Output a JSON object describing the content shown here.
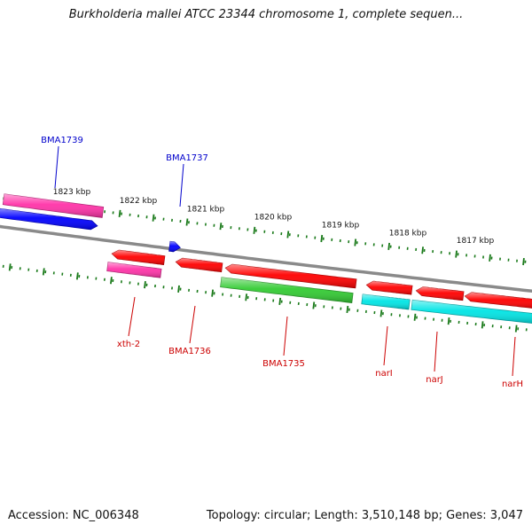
{
  "map": {
    "title": "Burkholderia mallei ATCC 23344 chromosome 1, complete sequen...",
    "accession_label": "Accession: NC_006348",
    "summary_label": "Topology: circular; Length: 3,510,148 bp; Genes: 3,047"
  },
  "ruler": {
    "unit": "kbp",
    "ticks": [
      "1823 kbp",
      "1822 kbp",
      "1821 kbp",
      "1820 kbp",
      "1819 kbp",
      "1818 kbp",
      "1817 kbp"
    ]
  },
  "genes": [
    {
      "label": "BMA1739",
      "strand": "+",
      "color": "#ff33a8",
      "labeled": true,
      "label_color": "#0000cc"
    },
    {
      "label": "",
      "strand": "+",
      "color": "#0000ff",
      "labeled": false
    },
    {
      "label": "BMA1737",
      "strand": "+",
      "color": "#0000ff",
      "labeled": true,
      "label_color": "#0000cc"
    },
    {
      "label": "xth-2",
      "strand": "-",
      "color": "#ff0000",
      "labeled": true,
      "label_color": "#cc0000"
    },
    {
      "label": "",
      "strand": "-",
      "color": "#ff33a8",
      "labeled": false
    },
    {
      "label": "BMA1736",
      "strand": "-",
      "color": "#ff0000",
      "labeled": true,
      "label_color": "#cc0000"
    },
    {
      "label": "BMA1735",
      "strand": "-",
      "color": "#ff0000",
      "labeled": true,
      "label_color": "#cc0000"
    },
    {
      "label": "",
      "strand": "-",
      "color": "#33cc33",
      "labeled": false
    },
    {
      "label": "narI",
      "strand": "-",
      "color": "#ff0000",
      "labeled": true,
      "label_color": "#cc0000"
    },
    {
      "label": "",
      "strand": "-",
      "color": "#00e5e5",
      "labeled": false
    },
    {
      "label": "narJ",
      "strand": "-",
      "color": "#ff0000",
      "labeled": true,
      "label_color": "#cc0000"
    },
    {
      "label": "",
      "strand": "-",
      "color": "#00e5e5",
      "labeled": false
    },
    {
      "label": "narH",
      "strand": "-",
      "color": "#ff0000",
      "labeled": true,
      "label_color": "#cc0000"
    }
  ],
  "colors": {
    "backbone": "#8a8a8a",
    "tick": "#1a7a1a",
    "title_text": "#111111"
  }
}
